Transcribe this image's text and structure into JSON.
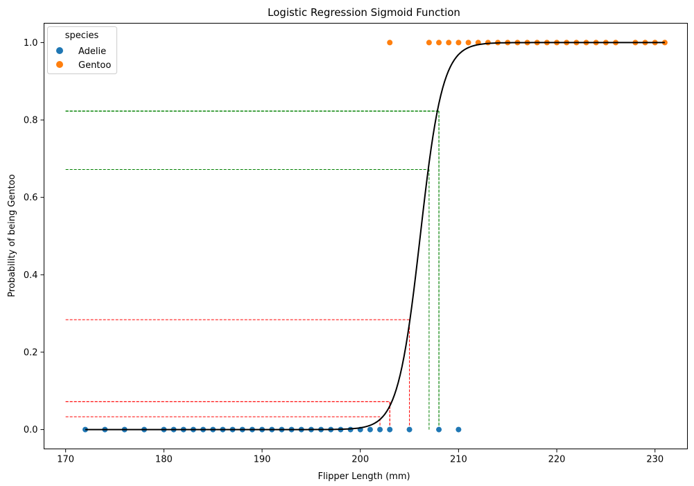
{
  "chart_data": {
    "type": "scatter",
    "title": "Logistic Regression Sigmoid Function",
    "xlabel": "Flipper Length (mm)",
    "ylabel": "Probability of being Gentoo",
    "xlim": [
      167.8,
      233.3
    ],
    "ylim": [
      -0.05,
      1.05
    ],
    "x_ticks": [
      170,
      180,
      190,
      200,
      210,
      220,
      230
    ],
    "y_ticks": [
      0.0,
      0.2,
      0.4,
      0.6,
      0.8,
      1.0
    ],
    "x_tick_labels": [
      "170",
      "180",
      "190",
      "200",
      "210",
      "220",
      "230"
    ],
    "y_tick_labels": [
      "0.0",
      "0.2",
      "0.4",
      "0.6",
      "0.8",
      "1.0"
    ],
    "grid": false,
    "legend": {
      "title": "species",
      "placement": "top-left",
      "entries": [
        {
          "label": "Adelie",
          "color": "#1f77b4"
        },
        {
          "label": "Gentoo",
          "color": "#ff7f0e"
        }
      ]
    },
    "series": [
      {
        "name": "Adelie",
        "color": "#1f77b4",
        "x": [
          172,
          174,
          176,
          178,
          180,
          181,
          182,
          183,
          184,
          185,
          186,
          187,
          188,
          189,
          190,
          191,
          192,
          193,
          194,
          195,
          196,
          197,
          198,
          199,
          200,
          201,
          202,
          203,
          205,
          208,
          210
        ],
        "y": [
          0,
          0,
          0,
          0,
          0,
          0,
          0,
          0,
          0,
          0,
          0,
          0,
          0,
          0,
          0,
          0,
          0,
          0,
          0,
          0,
          0,
          0,
          0,
          0,
          0,
          0,
          0,
          0,
          0,
          0,
          0
        ]
      },
      {
        "name": "Gentoo",
        "color": "#ff7f0e",
        "x": [
          203,
          207,
          208,
          209,
          210,
          211,
          212,
          213,
          214,
          215,
          216,
          217,
          218,
          219,
          220,
          221,
          222,
          223,
          224,
          225,
          226,
          228,
          229,
          230,
          231
        ],
        "y": [
          1,
          1,
          1,
          1,
          1,
          1,
          1,
          1,
          1,
          1,
          1,
          1,
          1,
          1,
          1,
          1,
          1,
          1,
          1,
          1,
          1,
          1,
          1,
          1,
          1
        ]
      }
    ],
    "sigmoid_curve": {
      "color": "#000000",
      "x_range": [
        172,
        231
      ],
      "midpoint": 206.1,
      "slope": 0.883
    },
    "guide_lines": [
      {
        "color": "#ff0000",
        "x": 202,
        "y": 0.033
      },
      {
        "color": "#ff0000",
        "x": 203,
        "y": 0.072
      },
      {
        "color": "#ff0000",
        "x": 203,
        "y": 0.072
      },
      {
        "color": "#ff0000",
        "x": 205,
        "y": 0.284
      },
      {
        "color": "#008000",
        "x": 207,
        "y": 0.672
      },
      {
        "color": "#008000",
        "x": 208,
        "y": 0.823
      },
      {
        "color": "#008000",
        "x": 208,
        "y": 0.823
      },
      {
        "color": "#008000",
        "x": 208,
        "y": 0.823
      },
      {
        "color": "#008000",
        "x": 208,
        "y": 0.823
      }
    ]
  }
}
